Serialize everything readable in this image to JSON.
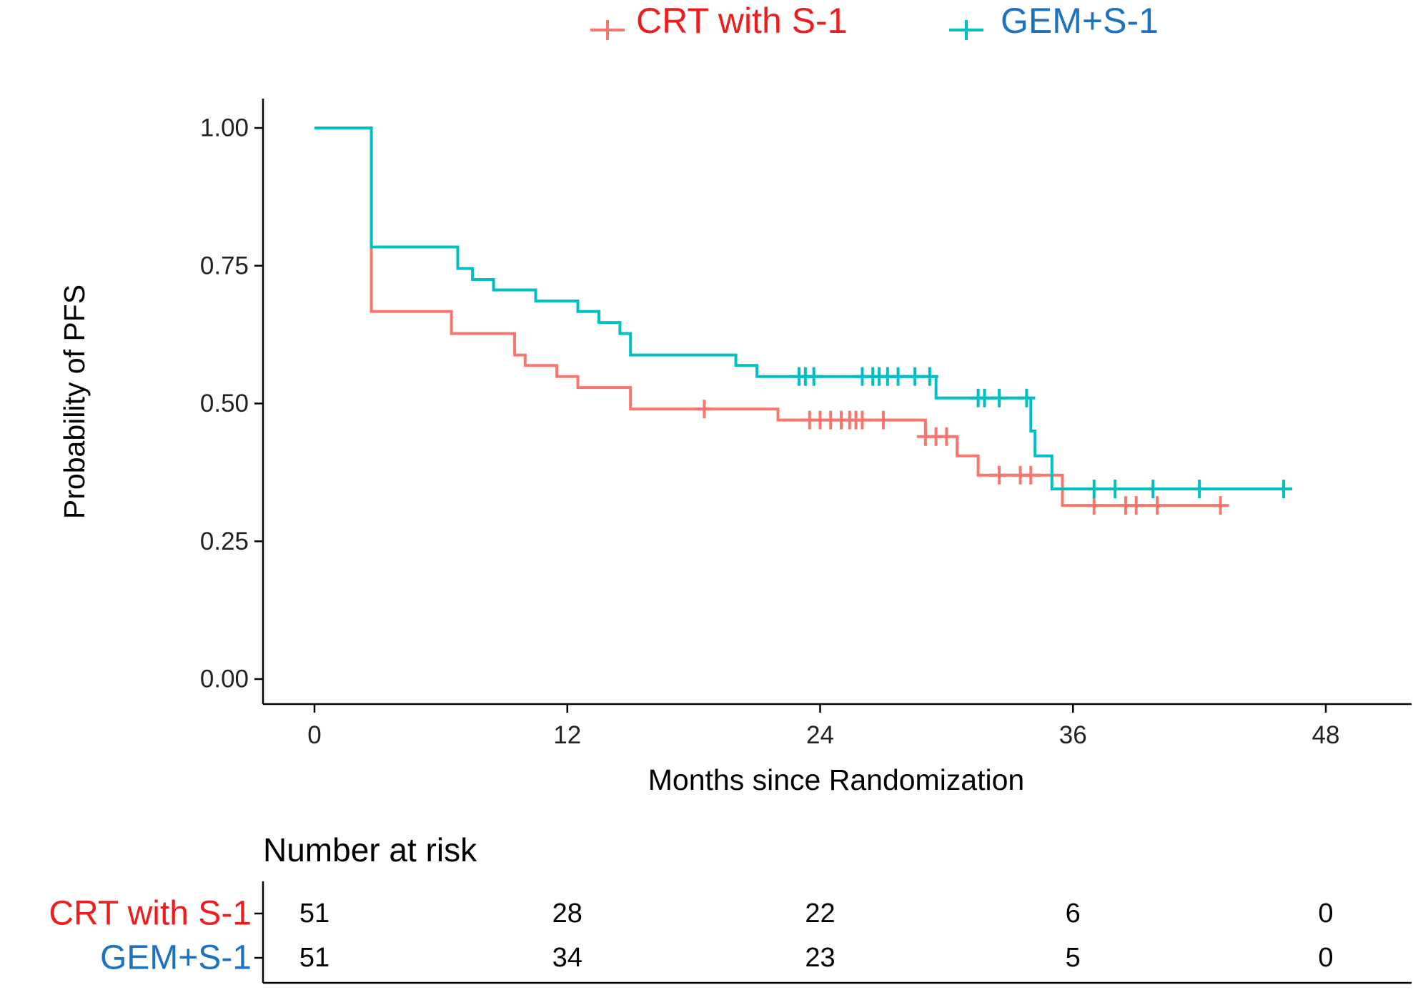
{
  "chart_data": {
    "type": "line",
    "subtype": "kaplan-meier",
    "xlabel": "Months since Randomization",
    "ylabel": "Probability of PFS",
    "xlim": [
      0,
      48
    ],
    "ylim": [
      0,
      1
    ],
    "x_ticks": [
      0,
      12,
      24,
      36,
      48
    ],
    "x_tick_labels": [
      "0",
      "12",
      "24",
      "36",
      "48"
    ],
    "y_ticks": [
      0,
      0.25,
      0.5,
      0.75,
      1.0
    ],
    "y_tick_labels": [
      "0.00",
      "0.25",
      "0.50",
      "0.75",
      "1.00"
    ],
    "grid": false,
    "legend_position": "top",
    "series": [
      {
        "name": "CRT with S-1",
        "line_color": "#F8766D",
        "label_color": "#EE1C1C",
        "steps": [
          [
            0,
            1.0
          ],
          [
            2.7,
            0.667
          ],
          [
            6.5,
            0.627
          ],
          [
            9.5,
            0.588
          ],
          [
            10.0,
            0.569
          ],
          [
            11.0,
            0.569
          ],
          [
            11.5,
            0.549
          ],
          [
            12.5,
            0.529
          ],
          [
            15.0,
            0.49
          ],
          [
            18.0,
            0.49
          ],
          [
            22.0,
            0.47
          ],
          [
            29.0,
            0.44
          ],
          [
            30.5,
            0.405
          ],
          [
            31.5,
            0.37
          ],
          [
            35.5,
            0.315
          ],
          [
            43.0,
            0.315
          ]
        ],
        "censor_times": [
          18.5,
          23.5,
          24.0,
          24.5,
          25.0,
          25.4,
          25.7,
          26.0,
          27.0,
          29.0,
          29.5,
          30.0,
          32.5,
          33.5,
          34.0,
          37.0,
          38.5,
          39.0,
          40.0,
          43.0
        ]
      },
      {
        "name": "GEM+S-1",
        "line_color": "#00BFC4",
        "label_color": "#1A72C0",
        "steps": [
          [
            0,
            1.0
          ],
          [
            2.7,
            0.784
          ],
          [
            6.8,
            0.745
          ],
          [
            7.5,
            0.725
          ],
          [
            8.5,
            0.706
          ],
          [
            9.5,
            0.706
          ],
          [
            10.5,
            0.686
          ],
          [
            11.5,
            0.686
          ],
          [
            12.5,
            0.667
          ],
          [
            13.5,
            0.647
          ],
          [
            14.5,
            0.627
          ],
          [
            15.0,
            0.588
          ],
          [
            20.0,
            0.569
          ],
          [
            21.0,
            0.549
          ],
          [
            29.5,
            0.51
          ],
          [
            29.8,
            0.51
          ],
          [
            34.0,
            0.45
          ],
          [
            34.2,
            0.405
          ],
          [
            35.0,
            0.345
          ],
          [
            46.0,
            0.345
          ]
        ],
        "censor_times": [
          23.0,
          23.3,
          23.7,
          26.0,
          26.5,
          26.8,
          27.2,
          27.7,
          28.5,
          29.2,
          31.5,
          31.8,
          32.5,
          33.8,
          37.0,
          38.0,
          39.8,
          42.0,
          46.0
        ]
      }
    ],
    "risk_table": {
      "title": "Number at risk",
      "times": [
        0,
        12,
        24,
        36,
        48
      ],
      "rows": [
        {
          "name": "CRT with S-1",
          "values": [
            "51",
            "28",
            "22",
            "6",
            "0"
          ]
        },
        {
          "name": "GEM+S-1",
          "values": [
            "51",
            "34",
            "23",
            "5",
            "0"
          ]
        }
      ]
    }
  }
}
